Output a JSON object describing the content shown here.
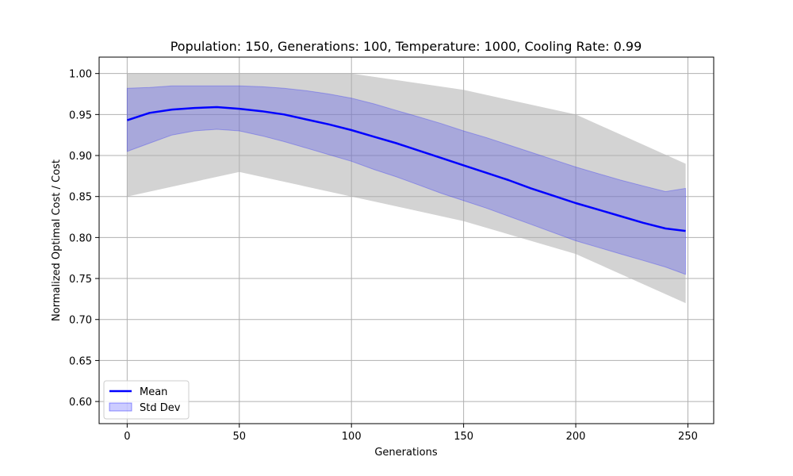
{
  "chart_data": {
    "type": "line",
    "title": "Population: 150, Generations: 100, Temperature: 1000, Cooling Rate: 0.99",
    "xlabel": "Generations",
    "ylabel": "Normalized Optimal Cost / Cost",
    "xlim": [
      -12.5,
      261.5
    ],
    "ylim": [
      0.573,
      1.02
    ],
    "xticks": [
      0,
      50,
      100,
      150,
      200,
      250
    ],
    "yticks": [
      0.6,
      0.65,
      0.7,
      0.75,
      0.8,
      0.85,
      0.9,
      0.95,
      1.0
    ],
    "ytick_labels": [
      "0.60",
      "0.65",
      "0.70",
      "0.75",
      "0.80",
      "0.85",
      "0.90",
      "0.95",
      "1.00"
    ],
    "grid": true,
    "legend_position": "lower-left",
    "series": [
      {
        "name": "Mean",
        "kind": "line",
        "color": "#0000ff",
        "x": [
          0,
          10,
          20,
          30,
          40,
          50,
          60,
          70,
          80,
          90,
          100,
          110,
          120,
          130,
          140,
          150,
          160,
          170,
          180,
          190,
          200,
          210,
          220,
          230,
          240,
          249
        ],
        "y": [
          0.943,
          0.952,
          0.956,
          0.958,
          0.959,
          0.957,
          0.954,
          0.95,
          0.944,
          0.938,
          0.931,
          0.923,
          0.915,
          0.906,
          0.897,
          0.888,
          0.879,
          0.87,
          0.86,
          0.851,
          0.842,
          0.834,
          0.826,
          0.818,
          0.811,
          0.808
        ]
      },
      {
        "name": "Std Dev",
        "kind": "band",
        "color": "#0000ff",
        "x": [
          0,
          10,
          20,
          30,
          40,
          50,
          60,
          70,
          80,
          90,
          100,
          110,
          120,
          130,
          140,
          150,
          160,
          170,
          180,
          190,
          200,
          210,
          220,
          230,
          240,
          249
        ],
        "upper": [
          0.982,
          0.983,
          0.985,
          0.985,
          0.985,
          0.985,
          0.984,
          0.982,
          0.979,
          0.975,
          0.97,
          0.963,
          0.955,
          0.947,
          0.939,
          0.93,
          0.922,
          0.913,
          0.904,
          0.895,
          0.886,
          0.878,
          0.87,
          0.863,
          0.856,
          0.86
        ],
        "lower": [
          0.905,
          0.915,
          0.925,
          0.93,
          0.932,
          0.93,
          0.924,
          0.917,
          0.909,
          0.901,
          0.893,
          0.883,
          0.874,
          0.864,
          0.854,
          0.845,
          0.836,
          0.826,
          0.816,
          0.806,
          0.796,
          0.788,
          0.78,
          0.772,
          0.764,
          0.755
        ]
      }
    ],
    "background_envelope": {
      "color": "#d3d3d3",
      "x": [
        0,
        50,
        100,
        150,
        200,
        249
      ],
      "upper": [
        1.0,
        1.0,
        1.0,
        0.98,
        0.95,
        0.89
      ],
      "lower": [
        0.85,
        0.88,
        0.85,
        0.82,
        0.78,
        0.72
      ]
    }
  }
}
